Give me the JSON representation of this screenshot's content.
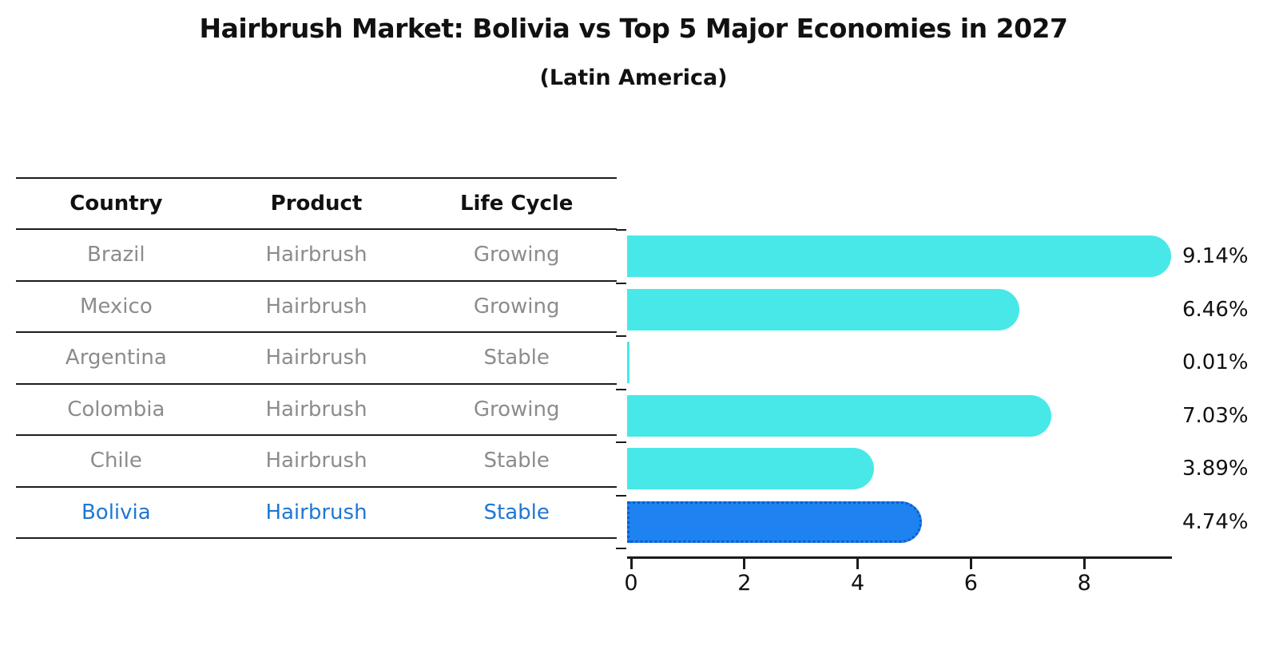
{
  "title": "Hairbrush Market: Bolivia vs Top 5 Major Economies in 2027",
  "subtitle": "(Latin America)",
  "table": {
    "headers": [
      "Country",
      "Product",
      "Life Cycle"
    ],
    "rows": [
      {
        "country": "Brazil",
        "product": "Hairbrush",
        "life_cycle": "Growing",
        "highlighted": false
      },
      {
        "country": "Mexico",
        "product": "Hairbrush",
        "life_cycle": "Growing",
        "highlighted": false
      },
      {
        "country": "Argentina",
        "product": "Hairbrush",
        "life_cycle": "Stable",
        "highlighted": false
      },
      {
        "country": "Colombia",
        "product": "Hairbrush",
        "life_cycle": "Growing",
        "highlighted": false
      },
      {
        "country": "Chile",
        "product": "Hairbrush",
        "life_cycle": "Stable",
        "highlighted": false
      },
      {
        "country": "Bolivia",
        "product": "Hairbrush",
        "life_cycle": "Stable",
        "highlighted": true
      }
    ]
  },
  "chart_data": {
    "type": "bar",
    "orientation": "horizontal",
    "title": "Hairbrush Market: Bolivia vs Top 5 Major Economies in 2027",
    "subtitle": "(Latin America)",
    "categories": [
      "Brazil",
      "Mexico",
      "Argentina",
      "Colombia",
      "Chile",
      "Bolivia"
    ],
    "values": [
      9.14,
      6.46,
      0.01,
      7.03,
      3.89,
      4.74
    ],
    "value_labels": [
      "9.14%",
      "6.46%",
      "0.01%",
      "7.03%",
      "3.89%",
      "4.74%"
    ],
    "xlabel": "",
    "ylabel": "",
    "xlim": [
      0,
      9.6
    ],
    "x_ticks": [
      0,
      2,
      4,
      6,
      8
    ],
    "grid": false,
    "legend": false,
    "highlighted_category": "Bolivia",
    "bar_color": "#48e8e8",
    "highlight_bar_color": "#1e82f0",
    "highlight_border_color": "#0c5ccc",
    "highlight_text_color": "#1f77d4"
  }
}
